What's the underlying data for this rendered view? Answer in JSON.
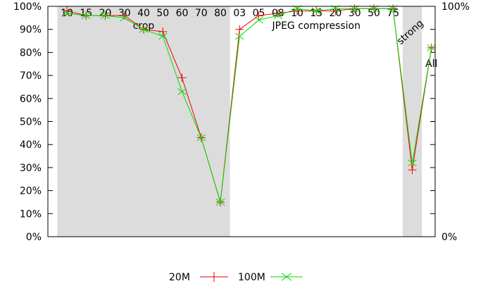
{
  "chart_data": {
    "type": "line",
    "title": "",
    "xlabel": "",
    "ylabel": "",
    "ylim": [
      0,
      100
    ],
    "y_ticks": [
      "0%",
      "10%",
      "20%",
      "30%",
      "40%",
      "50%",
      "60%",
      "70%",
      "80%",
      "90%",
      "100%"
    ],
    "y2_ticks": [
      "0%",
      "100%"
    ],
    "grid": false,
    "legend_position": "bottom-center",
    "groups": [
      {
        "label": "crop",
        "shaded": true,
        "categories": [
          "10",
          "15",
          "20",
          "30",
          "40",
          "50",
          "60",
          "70",
          "80"
        ]
      },
      {
        "label": "JPEG compression",
        "shaded": false,
        "categories": [
          "03",
          "05",
          "08",
          "10",
          "15",
          "20",
          "30",
          "50",
          "75"
        ]
      },
      {
        "label": "strong",
        "shaded": true,
        "categories": []
      },
      {
        "label": "All",
        "shaded": false,
        "categories": []
      }
    ],
    "series": [
      {
        "name": "20M",
        "color": "#ee0000",
        "marker": "plus",
        "values": [
          98,
          96,
          96,
          96,
          90,
          89,
          69,
          43,
          15,
          90,
          96,
          97,
          98,
          98,
          98,
          99,
          99,
          99,
          29,
          82
        ]
      },
      {
        "name": "100M",
        "color": "#00dd00",
        "marker": "x",
        "values": [
          97,
          96,
          96,
          95,
          90,
          87,
          63,
          43,
          15,
          87,
          94,
          96,
          99,
          98,
          99,
          99,
          99,
          99,
          32,
          82
        ]
      }
    ]
  }
}
